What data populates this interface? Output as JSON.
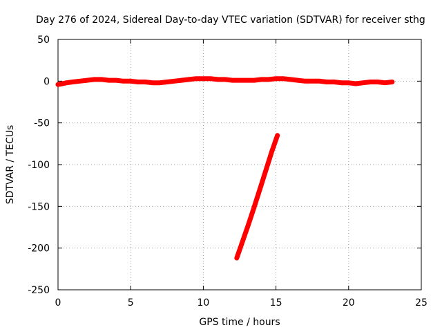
{
  "chart_data": {
    "type": "line",
    "title": "Day 276 of 2024, Sidereal Day-to-day VTEC variation (SDTVAR) for receiver sthg",
    "xlabel": "GPS time / hours",
    "ylabel": "SDTVAR / TECUs",
    "xlim": [
      0,
      25
    ],
    "ylim": [
      -250,
      50
    ],
    "xticks": [
      0,
      5,
      10,
      15,
      20,
      25
    ],
    "yticks": [
      -250,
      -200,
      -150,
      -100,
      -50,
      0,
      50
    ],
    "grid": true,
    "colors": {
      "series": "#ff0000"
    },
    "series": [
      {
        "x": [
          0,
          0.3,
          0.6,
          1.0,
          1.5,
          2.0,
          2.5,
          3.0,
          3.5,
          4.0,
          4.5,
          5.0,
          5.5,
          6.0,
          6.5,
          7.0,
          7.5,
          8.0,
          8.5,
          9.0,
          9.5,
          10.0,
          10.5,
          11.0,
          11.5,
          12.0,
          12.5,
          13.0,
          13.5,
          14.0,
          14.5,
          15.0,
          15.5,
          16.0,
          16.5,
          17.0,
          17.5,
          18.0,
          18.5,
          19.0,
          19.5,
          20.0,
          20.5,
          21.0,
          21.5,
          22.0,
          22.5,
          23.0
        ],
        "y": [
          -4,
          -3,
          -2,
          -1,
          0,
          1,
          2,
          2,
          1,
          1,
          0,
          0,
          -1,
          -1,
          -2,
          -2,
          -1,
          0,
          1,
          2,
          3,
          3,
          3,
          2,
          2,
          1,
          1,
          1,
          1,
          2,
          2,
          3,
          3,
          2,
          1,
          0,
          0,
          0,
          -1,
          -1,
          -2,
          -2,
          -3,
          -2,
          -1,
          -1,
          -2,
          -1
        ]
      },
      {
        "x": [
          12.3,
          12.7,
          13.1,
          13.5,
          13.9,
          14.3,
          14.7,
          15.1
        ],
        "y": [
          -212,
          -192,
          -172,
          -151,
          -129,
          -107,
          -85,
          -65
        ]
      }
    ]
  }
}
